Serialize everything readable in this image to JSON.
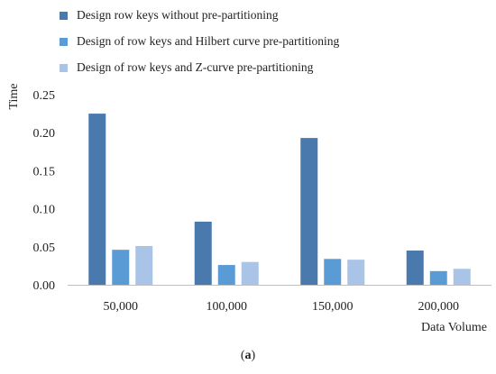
{
  "chart_data": {
    "type": "bar",
    "categories": [
      "50,000",
      "100,000",
      "150,000",
      "200,000"
    ],
    "series": [
      {
        "name": "Design row keys without pre-partitioning",
        "values": [
          0.225,
          0.083,
          0.193,
          0.045
        ],
        "color": "#4a79ad"
      },
      {
        "name": "Design of row keys and Hilbert curve pre-partitioning",
        "values": [
          0.046,
          0.026,
          0.034,
          0.018
        ],
        "color": "#5b9bd5"
      },
      {
        "name": "Design of row keys and Z-curve pre-partitioning",
        "values": [
          0.051,
          0.03,
          0.033,
          0.021
        ],
        "color": "#a9c4e6"
      }
    ],
    "ylabel": "Time",
    "xlabel": "Data Volume",
    "ylim": [
      0,
      0.25
    ],
    "yticks": [
      "0.00",
      "0.05",
      "0.10",
      "0.15",
      "0.20",
      "0.25"
    ],
    "grid": false,
    "legend_position": "top-left"
  },
  "caption": {
    "open": "(",
    "letter": "a",
    "close": ")"
  }
}
